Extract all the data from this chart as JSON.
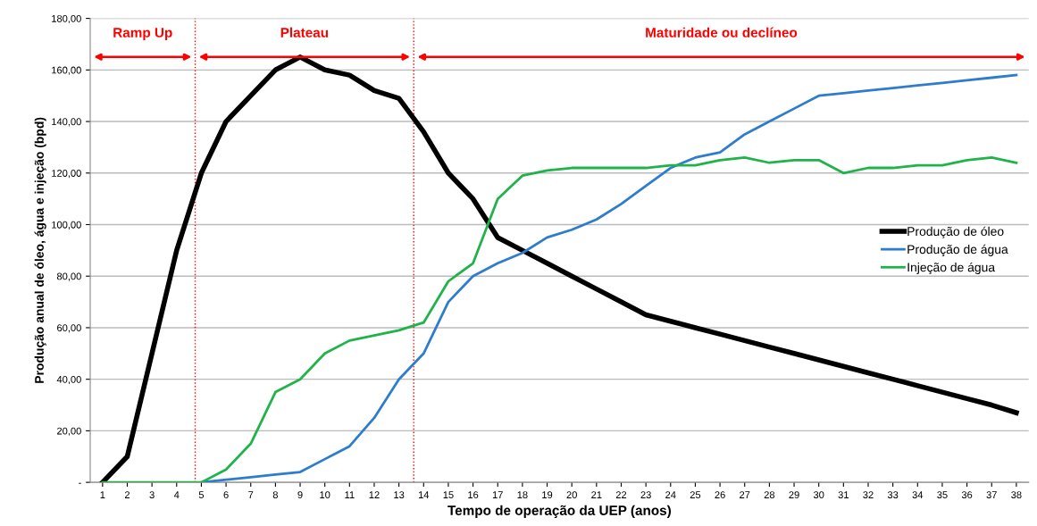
{
  "chart_data": {
    "type": "line",
    "xlabel": "Tempo de operação da UEP (anos)",
    "ylabel": "Produção anual de óleo, água e injeção (bpd)",
    "x": [
      1,
      2,
      3,
      4,
      5,
      6,
      7,
      8,
      9,
      10,
      11,
      12,
      13,
      14,
      15,
      16,
      17,
      18,
      19,
      20,
      21,
      22,
      23,
      24,
      25,
      26,
      27,
      28,
      29,
      30,
      31,
      32,
      33,
      34,
      35,
      36,
      37,
      38
    ],
    "xlim": [
      0.5,
      38.5
    ],
    "xticks": [
      1,
      2,
      3,
      4,
      5,
      6,
      7,
      8,
      9,
      10,
      11,
      12,
      13,
      14,
      15,
      16,
      17,
      18,
      19,
      20,
      21,
      22,
      23,
      24,
      25,
      26,
      27,
      28,
      29,
      30,
      31,
      32,
      33,
      34,
      35,
      36,
      37,
      38
    ],
    "ylim": [
      0,
      180
    ],
    "yticks": [
      {
        "value": 0,
        "label": "-"
      },
      {
        "value": 20,
        "label": "20,00"
      },
      {
        "value": 40,
        "label": "40,00"
      },
      {
        "value": 60,
        "label": "60,00"
      },
      {
        "value": 80,
        "label": "80,00"
      },
      {
        "value": 100,
        "label": "100,00"
      },
      {
        "value": 120,
        "label": "120,00"
      },
      {
        "value": 140,
        "label": "140,00"
      },
      {
        "value": 160,
        "label": "160,00"
      },
      {
        "value": 180,
        "label": "180,00"
      }
    ],
    "series": [
      {
        "name": "Produção de óleo",
        "color": "#000000",
        "values": [
          0,
          10,
          50,
          90,
          120,
          140,
          150,
          160,
          165,
          160,
          158,
          152,
          149,
          136,
          120,
          110,
          95,
          90,
          85,
          80,
          75,
          70,
          65,
          62.5,
          60,
          57.5,
          55,
          52.5,
          50,
          47.5,
          45,
          42.5,
          40,
          37.5,
          35,
          32.5,
          30,
          27
        ]
      },
      {
        "name": "Produção de água",
        "color": "#2e7dcc",
        "values": [
          null,
          null,
          null,
          null,
          0,
          1,
          2,
          3,
          4,
          9,
          14,
          25,
          40,
          50,
          70,
          80,
          85,
          89,
          95,
          98,
          102,
          108,
          115,
          122,
          126,
          128,
          135,
          140,
          145,
          150,
          151,
          152,
          153,
          154,
          155,
          156,
          157,
          158
        ]
      },
      {
        "name": "Injeção de água",
        "color": "#1fb34a",
        "values": [
          0,
          0,
          0,
          0,
          0,
          5,
          15,
          35,
          40,
          50,
          55,
          57,
          59,
          62,
          78,
          85,
          110,
          119,
          121,
          122,
          122,
          122,
          122,
          123,
          123,
          125,
          126,
          124,
          125,
          125,
          120,
          122,
          122,
          123,
          123,
          125,
          126,
          124
        ]
      }
    ],
    "ref_lines": [
      {
        "axis": "x",
        "value": 4.75,
        "color": "#ff0000",
        "line_style": "dotted"
      },
      {
        "axis": "x",
        "value": 13.6,
        "color": "#ff0000",
        "line_style": "dotted"
      }
    ],
    "annotations": [
      "Ramp Up",
      "Plateau",
      "Maturidade ou declíneo"
    ],
    "grid": "y",
    "legend": "center right",
    "marker": "none",
    "line_style": "solid"
  }
}
